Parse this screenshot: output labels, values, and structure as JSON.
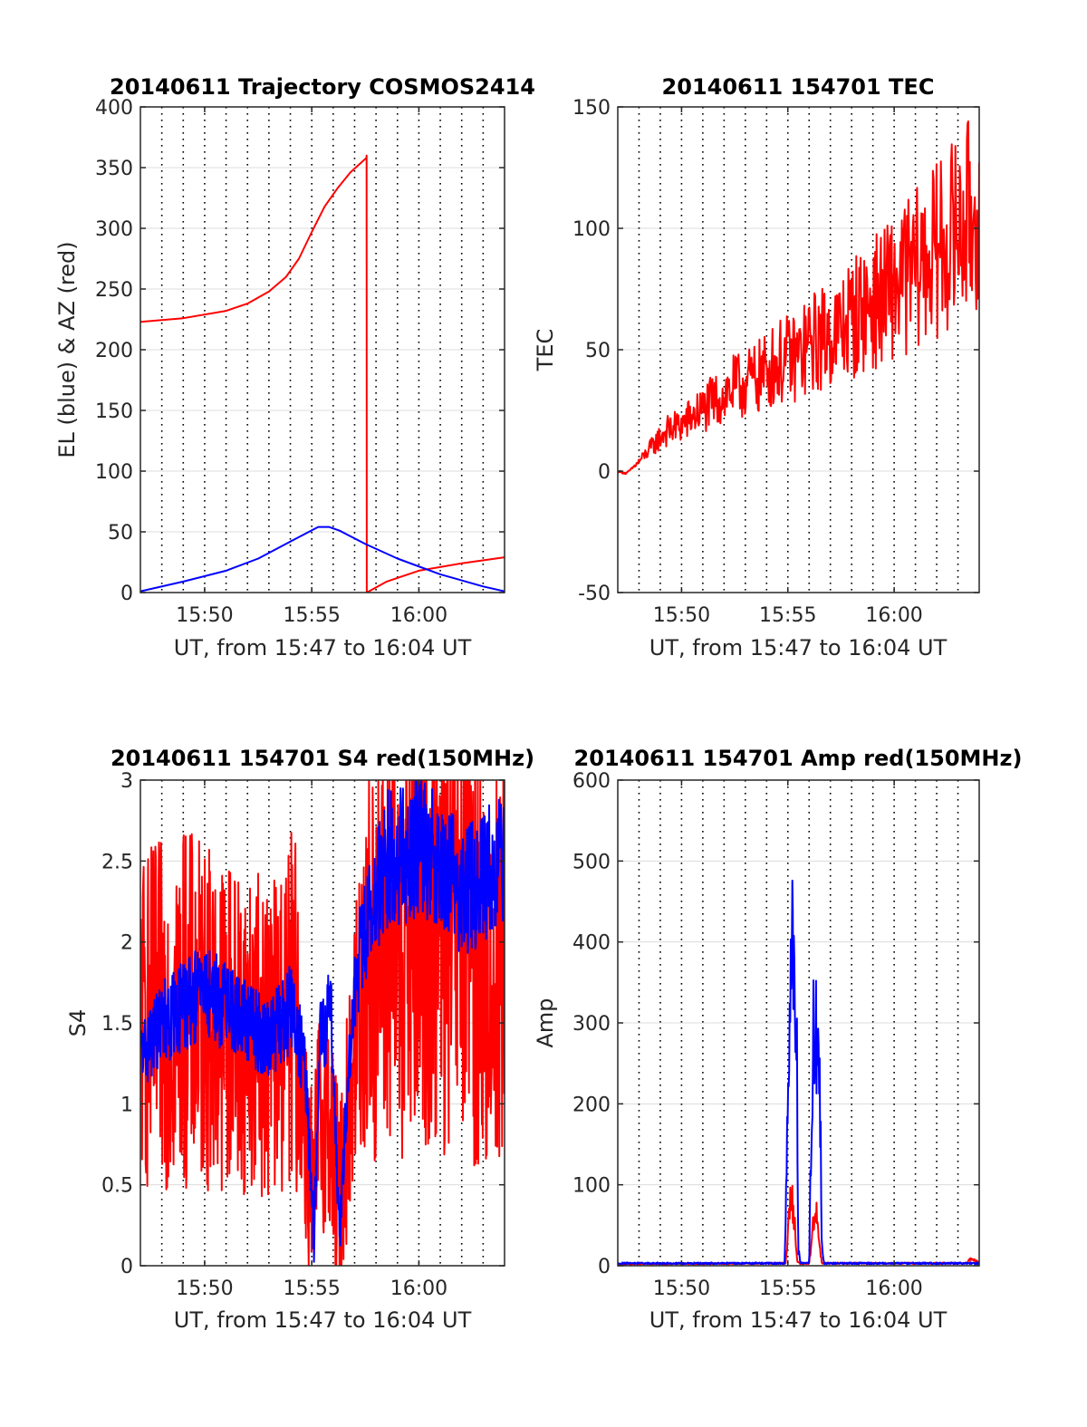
{
  "chart_data": [
    {
      "type": "line",
      "title": "20140611 Trajectory COSMOS2414",
      "xlabel": "UT, from 15:47 to 16:04 UT",
      "ylabel": "EL (blue) & AZ (red)",
      "xlim": [
        0,
        17
      ],
      "ylim": [
        0,
        400
      ],
      "yticks": [
        0,
        50,
        100,
        150,
        200,
        250,
        300,
        350,
        400
      ],
      "xticks": [
        {
          "value": 3,
          "label": "15:50"
        },
        {
          "value": 8,
          "label": "15:55"
        },
        {
          "value": 13,
          "label": "16:00"
        }
      ],
      "grid": true,
      "series": [
        {
          "color": "#ff0000",
          "style": "smooth",
          "x": [
            0,
            2,
            4,
            5,
            6,
            6.8,
            7.4,
            8,
            8.6,
            9.2,
            9.8,
            10.3,
            10.55,
            10.56,
            10.57,
            11.5,
            13,
            15,
            17
          ],
          "y": [
            223,
            226,
            232,
            238,
            248,
            260,
            275,
            297,
            318,
            333,
            346,
            354,
            358,
            360,
            0,
            9,
            18,
            24,
            29
          ]
        },
        {
          "color": "#0000ff",
          "style": "smooth",
          "x": [
            0,
            2,
            4,
            5.5,
            7,
            8.3,
            8.8,
            9.3,
            10.5,
            12,
            14,
            16,
            17
          ],
          "y": [
            1,
            9,
            18,
            28,
            42,
            54,
            54,
            51,
            40,
            28,
            15,
            5,
            1
          ]
        }
      ]
    },
    {
      "type": "line",
      "title": "20140611 154701 TEC",
      "xlabel": "UT, from 15:47 to 16:04 UT",
      "ylabel": "TEC",
      "xlim": [
        0,
        17
      ],
      "ylim": [
        -50,
        150
      ],
      "yticks": [
        -50,
        0,
        50,
        100,
        150
      ],
      "xticks": [
        {
          "value": 3,
          "label": "15:50"
        },
        {
          "value": 8,
          "label": "15:55"
        },
        {
          "value": 13,
          "label": "16:00"
        }
      ],
      "grid": true,
      "series": [
        {
          "color": "#ff0000",
          "style": "noisy",
          "noise": 0.8,
          "points": 500,
          "x": [
            0,
            0.4,
            0.9,
            1.4,
            2.2,
            3,
            3.6,
            4.6,
            5.4,
            6,
            6.7,
            7.4,
            8,
            8.5,
            9,
            9.7,
            10.3,
            11,
            11.8,
            12.5,
            13.3,
            14,
            14.8,
            15.6,
            16.4,
            17
          ],
          "y": [
            0,
            -1,
            3,
            8,
            16,
            19,
            23,
            29,
            34,
            36,
            39,
            44,
            46,
            47,
            52,
            55,
            57,
            63,
            68,
            72,
            78,
            83,
            89,
            96,
            103,
            108
          ]
        }
      ]
    },
    {
      "type": "line",
      "title": "20140611 154701 S4 red(150MHz)",
      "xlabel": "UT, from 15:47 to 16:04 UT",
      "ylabel": "S4",
      "xlim": [
        0,
        17
      ],
      "ylim": [
        0,
        3
      ],
      "yticks": [
        0,
        0.5,
        1,
        1.5,
        2,
        2.5,
        3
      ],
      "xticks": [
        {
          "value": 3,
          "label": "15:50"
        },
        {
          "value": 8,
          "label": "15:55"
        },
        {
          "value": 13,
          "label": "16:00"
        }
      ],
      "grid": true,
      "series": [
        {
          "color": "#ff0000",
          "style": "noisy",
          "noise": 1.4,
          "points": 900,
          "lineWidth": 2,
          "x": [
            0,
            2,
            4,
            6,
            7.2,
            7.6,
            8.1,
            8.3,
            8.8,
            9.3,
            9.6,
            10.4,
            12,
            14,
            15.5,
            16.3,
            17
          ],
          "y": [
            1.5,
            1.6,
            1.5,
            1.4,
            1.6,
            1.0,
            0.3,
            0.9,
            0.9,
            0.3,
            0.8,
            1.8,
            2.0,
            2.1,
            2.0,
            1.6,
            2.0
          ]
        },
        {
          "color": "#0000ff",
          "style": "noisy",
          "noise": 0.35,
          "points": 900,
          "lineWidth": 2,
          "x": [
            0,
            1,
            2,
            3,
            4,
            5,
            6,
            7.1,
            7.7,
            8.1,
            8.4,
            8.9,
            9.3,
            9.7,
            10.2,
            10.8,
            11.5,
            13,
            14,
            15,
            16,
            17
          ],
          "y": [
            1.3,
            1.5,
            1.6,
            1.7,
            1.6,
            1.5,
            1.4,
            1.6,
            1.2,
            0.15,
            1.4,
            1.6,
            0.2,
            1.2,
            1.9,
            2.2,
            2.5,
            2.6,
            2.5,
            2.3,
            2.4,
            2.5
          ]
        }
      ]
    },
    {
      "type": "line",
      "title": "20140611 154701 Amp red(150MHz)",
      "xlabel": "UT, from 15:47 to 16:04 UT",
      "ylabel": "Amp",
      "xlim": [
        0,
        17
      ],
      "ylim": [
        0,
        600
      ],
      "yticks": [
        0,
        100,
        200,
        300,
        400,
        500,
        600
      ],
      "xticks": [
        {
          "value": 3,
          "label": "15:50"
        },
        {
          "value": 8,
          "label": "15:55"
        },
        {
          "value": 13,
          "label": "16:00"
        }
      ],
      "grid": true,
      "series": [
        {
          "color": "#ff0000",
          "style": "noisy",
          "noise": 0.6,
          "points": 700,
          "x": [
            0,
            7.9,
            8.0,
            8.15,
            8.3,
            8.45,
            8.6,
            9.0,
            9.15,
            9.3,
            9.45,
            9.6,
            16.4,
            16.6,
            16.8,
            17
          ],
          "y": [
            2,
            3,
            40,
            90,
            60,
            5,
            2,
            3,
            40,
            80,
            30,
            3,
            3,
            8,
            6,
            4
          ]
        },
        {
          "color": "#0000ff",
          "style": "noisy",
          "noise": 0.7,
          "points": 700,
          "x": [
            0,
            7.85,
            7.95,
            8.1,
            8.2,
            8.3,
            8.4,
            8.5,
            8.6,
            9.0,
            9.1,
            9.2,
            9.35,
            9.5,
            9.6,
            9.7,
            17
          ],
          "y": [
            3,
            3,
            150,
            280,
            405,
            300,
            330,
            20,
            3,
            3,
            150,
            270,
            280,
            260,
            20,
            3,
            3
          ]
        }
      ]
    }
  ]
}
